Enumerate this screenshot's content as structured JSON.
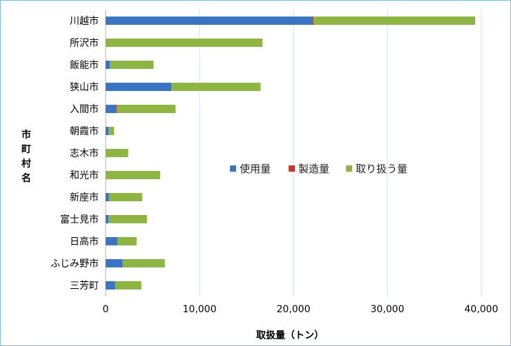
{
  "chart_data": {
    "type": "bar",
    "orientation": "horizontal",
    "stacked": true,
    "categories": [
      "川越市",
      "所沢市",
      "飯能市",
      "狭山市",
      "入間市",
      "朝霞市",
      "志木市",
      "和光市",
      "新座市",
      "富士見市",
      "日高市",
      "ふじみ野市",
      "三芳町"
    ],
    "series": [
      {
        "name": "使用量",
        "color": "#3a74c4",
        "values": [
          22000,
          0,
          450,
          7000,
          1050,
          300,
          0,
          0,
          350,
          300,
          1250,
          1800,
          1000
        ]
      },
      {
        "name": "製造量",
        "color": "#c0392b",
        "values": [
          150,
          0,
          0,
          0,
          150,
          0,
          0,
          0,
          0,
          0,
          0,
          0,
          0
        ]
      },
      {
        "name": "取り扱う量",
        "color": "#8db542",
        "values": [
          17200,
          16700,
          4650,
          9500,
          6250,
          600,
          2400,
          5800,
          3550,
          4100,
          2050,
          4500,
          2800
        ]
      }
    ],
    "xlim": [
      0,
      40000
    ],
    "xticks": [
      0,
      10000,
      20000,
      30000,
      40000
    ],
    "xtick_labels": [
      "0",
      "10,000",
      "20,000",
      "30,000",
      "40,000"
    ],
    "xlabel": "取扱量（トン）",
    "ylabel": "市町村名",
    "grid": "vertical",
    "legend": "center-right"
  }
}
